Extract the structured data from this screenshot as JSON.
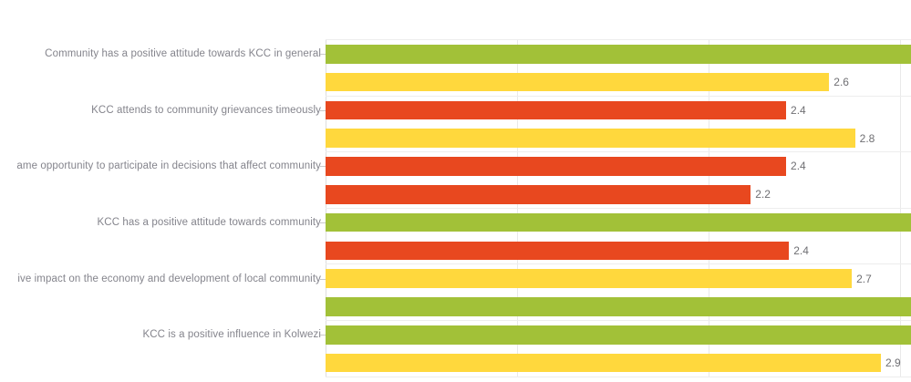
{
  "chart_data": {
    "type": "bar",
    "orientation": "horizontal",
    "value_axis": {
      "min": 0,
      "gridline_values": [
        1,
        2,
        3
      ],
      "tick_labels_visible": false,
      "visible_max": 3.06
    },
    "legend": "none",
    "grid_on": true,
    "colors": {
      "green": "#a2c138",
      "yellow": "#ffd83d",
      "red": "#e8481f"
    },
    "style_colors": {
      "gridline": "#e9e9e9",
      "separator": "#ededed",
      "axis": "#dedede",
      "tick": "#c9c9c9",
      "category_label": "#84848c",
      "value_label": "#6f6f73"
    },
    "categories": [
      {
        "label": "Community has a positive attitude towards KCC in general",
        "label_clipped_left": false,
        "bars": [
          {
            "color": "green",
            "value": null,
            "value_label": "",
            "value_est": null,
            "cut_off_at_right_edge": true
          },
          {
            "color": "yellow",
            "value": 2.6,
            "value_label": "2.6",
            "value_est": 2.63,
            "cut_off_at_right_edge": false
          }
        ]
      },
      {
        "label": "KCC attends to community grievances timeously",
        "label_clipped_left": false,
        "bars": [
          {
            "color": "red",
            "value": 2.4,
            "value_label": "2.4",
            "value_est": 2.405,
            "cut_off_at_right_edge": false
          },
          {
            "color": "yellow",
            "value": 2.8,
            "value_label": "2.8",
            "value_est": 2.765,
            "cut_off_at_right_edge": false
          }
        ]
      },
      {
        "label": "ame opportunity to participate in decisions that affect community",
        "label_clipped_left": true,
        "bars": [
          {
            "color": "red",
            "value": 2.4,
            "value_label": "2.4",
            "value_est": 2.405,
            "cut_off_at_right_edge": false
          },
          {
            "color": "red",
            "value": 2.2,
            "value_label": "2.2",
            "value_est": 2.22,
            "cut_off_at_right_edge": false
          }
        ]
      },
      {
        "label": "KCC has a positive attitude towards community",
        "label_clipped_left": false,
        "bars": [
          {
            "color": "green",
            "value": null,
            "value_label": "",
            "value_est": null,
            "cut_off_at_right_edge": true
          },
          {
            "color": "red",
            "value": 2.4,
            "value_label": "2.4",
            "value_est": 2.42,
            "cut_off_at_right_edge": false
          }
        ]
      },
      {
        "label": "ive impact on the economy and development of local community",
        "label_clipped_left": true,
        "bars": [
          {
            "color": "yellow",
            "value": 2.7,
            "value_label": "2.7",
            "value_est": 2.748,
            "cut_off_at_right_edge": false
          },
          {
            "color": "green",
            "value": null,
            "value_label": "",
            "value_est": null,
            "cut_off_at_right_edge": true
          }
        ]
      },
      {
        "label": "KCC is a positive influence in Kolwezi",
        "label_clipped_left": false,
        "bars": [
          {
            "color": "green",
            "value": null,
            "value_label": "",
            "value_est": null,
            "cut_off_at_right_edge": true
          },
          {
            "color": "yellow",
            "value": 2.9,
            "value_label": "2.9",
            "value_est": 2.9,
            "cut_off_at_right_edge": false
          }
        ]
      }
    ]
  }
}
